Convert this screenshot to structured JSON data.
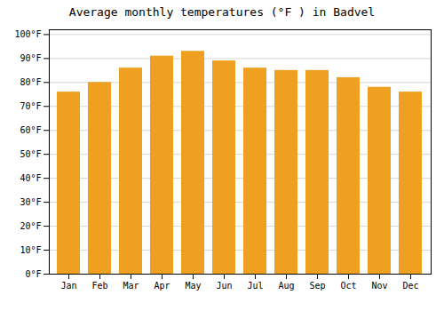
{
  "chart_data": {
    "type": "bar",
    "title": "Average monthly temperatures (°F ) in Badvel",
    "categories": [
      "Jan",
      "Feb",
      "Mar",
      "Apr",
      "May",
      "Jun",
      "Jul",
      "Aug",
      "Sep",
      "Oct",
      "Nov",
      "Dec"
    ],
    "values": [
      76,
      80,
      86,
      91,
      93,
      89,
      86,
      85,
      85,
      82,
      78,
      76
    ],
    "color": "#F0A020",
    "ylim": [
      0,
      102
    ],
    "yticks": [
      {
        "value": 0,
        "label": "0°F"
      },
      {
        "value": 10,
        "label": "10°F"
      },
      {
        "value": 20,
        "label": "20°F"
      },
      {
        "value": 30,
        "label": "30°F"
      },
      {
        "value": 40,
        "label": "40°F"
      },
      {
        "value": 50,
        "label": "50°F"
      },
      {
        "value": 60,
        "label": "60°F"
      },
      {
        "value": 70,
        "label": "70°F"
      },
      {
        "value": 80,
        "label": "80°F"
      },
      {
        "value": 90,
        "label": "90°F"
      },
      {
        "value": 100,
        "label": "100°F"
      }
    ],
    "grid": true
  }
}
